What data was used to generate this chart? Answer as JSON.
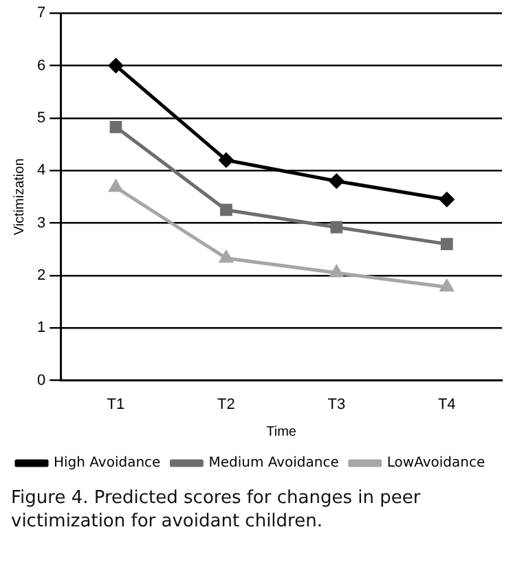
{
  "chart_data": {
    "type": "line",
    "xlabel": "Time",
    "ylabel": "Victimization",
    "categories": [
      "T1",
      "T2",
      "T3",
      "T4"
    ],
    "series": [
      {
        "name": "High Avoidance",
        "color": "#000000",
        "marker": "diamond",
        "values": [
          6.0,
          4.2,
          3.8,
          3.45
        ]
      },
      {
        "name": "Medium Avoidance",
        "color": "#6d6d6d",
        "marker": "square",
        "values": [
          4.83,
          3.25,
          2.92,
          2.6
        ]
      },
      {
        "name": "LowAvoidance",
        "color": "#a6a6a6",
        "marker": "triangle",
        "values": [
          3.68,
          2.33,
          2.05,
          1.78
        ]
      }
    ],
    "ylim": [
      0,
      7
    ],
    "yticks": [
      0,
      1,
      2,
      3,
      4,
      5,
      6,
      7
    ],
    "grid": "y",
    "legend": "bottom left",
    "line_style": "solid",
    "annotations": [
      "Figure 4. Predicted scores for changes in peer victimization for avoidant children."
    ]
  }
}
